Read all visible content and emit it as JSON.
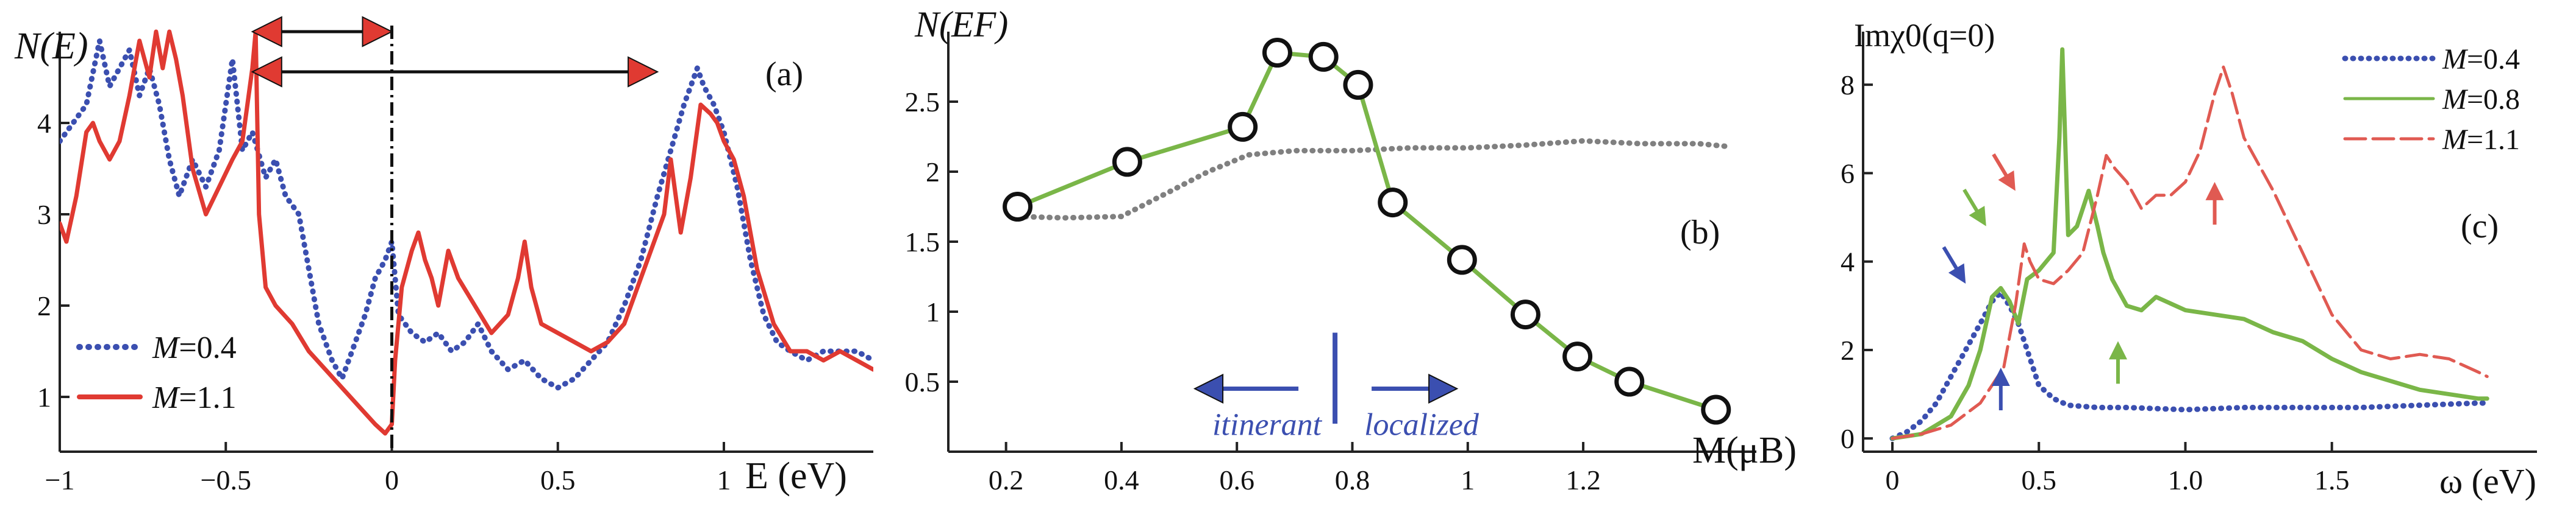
{
  "chart_data": [
    {
      "panel": "(a)",
      "type": "line",
      "ylabel": "N(E)",
      "xlabel": "E (eV)",
      "xlim": [
        -1,
        1.45
      ],
      "ylim": [
        0.4,
        5.0
      ],
      "xticks": [
        {
          "v": -1,
          "t": "−1"
        },
        {
          "v": -0.5,
          "t": "−0.5"
        },
        {
          "v": 0,
          "t": "0"
        },
        {
          "v": 0.5,
          "t": "0.5"
        },
        {
          "v": 1,
          "t": "1"
        }
      ],
      "yticks": [
        {
          "v": 1,
          "t": "1"
        },
        {
          "v": 2,
          "t": "2"
        },
        {
          "v": 3,
          "t": "3"
        },
        {
          "v": 4,
          "t": "4"
        }
      ],
      "legend_position": "bottom-left",
      "series": [
        {
          "name": "M=0.4",
          "italic_part": "M",
          "value_part": "=0.4",
          "color": "#3b4fb0",
          "style": "dotted",
          "x": [
            -1.0,
            -0.96,
            -0.92,
            -0.88,
            -0.85,
            -0.82,
            -0.79,
            -0.76,
            -0.73,
            -0.7,
            -0.67,
            -0.64,
            -0.6,
            -0.56,
            -0.52,
            -0.48,
            -0.45,
            -0.42,
            -0.38,
            -0.35,
            -0.32,
            -0.28,
            -0.25,
            -0.22,
            -0.18,
            -0.15,
            -0.12,
            -0.08,
            -0.05,
            -0.02,
            0.0,
            0.02,
            0.06,
            0.1,
            0.14,
            0.18,
            0.22,
            0.26,
            0.3,
            0.35,
            0.4,
            0.45,
            0.5,
            0.55,
            0.6,
            0.65,
            0.7,
            0.75,
            0.8,
            0.84,
            0.88,
            0.92,
            0.94,
            0.97,
            1.0,
            1.04,
            1.08,
            1.12,
            1.16,
            1.2,
            1.25,
            1.3,
            1.35,
            1.4,
            1.45
          ],
          "y": [
            3.8,
            4.0,
            4.2,
            4.9,
            4.4,
            4.6,
            4.8,
            4.3,
            4.6,
            4.2,
            3.6,
            3.2,
            3.6,
            3.3,
            3.7,
            4.7,
            3.7,
            3.9,
            3.4,
            3.6,
            3.2,
            3.0,
            2.4,
            1.8,
            1.4,
            1.2,
            1.5,
            1.9,
            2.3,
            2.5,
            2.7,
            1.9,
            1.7,
            1.6,
            1.7,
            1.5,
            1.6,
            1.8,
            1.5,
            1.3,
            1.4,
            1.2,
            1.1,
            1.2,
            1.4,
            1.6,
            2.0,
            2.5,
            3.2,
            3.7,
            4.2,
            4.6,
            4.4,
            4.2,
            3.9,
            3.3,
            2.5,
            1.9,
            1.6,
            1.5,
            1.4,
            1.5,
            1.5,
            1.5,
            1.4
          ]
        },
        {
          "name": "M=1.1",
          "italic_part": "M",
          "value_part": "=1.1",
          "color": "#e03a32",
          "style": "solid",
          "x": [
            -1.0,
            -0.98,
            -0.95,
            -0.92,
            -0.9,
            -0.88,
            -0.85,
            -0.82,
            -0.79,
            -0.76,
            -0.73,
            -0.71,
            -0.69,
            -0.67,
            -0.65,
            -0.63,
            -0.6,
            -0.56,
            -0.52,
            -0.48,
            -0.45,
            -0.42,
            -0.41,
            -0.4,
            -0.38,
            -0.35,
            -0.3,
            -0.25,
            -0.2,
            -0.15,
            -0.1,
            -0.05,
            -0.02,
            0.0,
            0.01,
            0.03,
            0.06,
            0.08,
            0.1,
            0.12,
            0.14,
            0.17,
            0.2,
            0.25,
            0.3,
            0.35,
            0.38,
            0.4,
            0.42,
            0.45,
            0.5,
            0.55,
            0.6,
            0.65,
            0.7,
            0.74,
            0.78,
            0.82,
            0.84,
            0.87,
            0.9,
            0.93,
            0.96,
            0.98,
            1.0,
            1.03,
            1.06,
            1.1,
            1.15,
            1.2,
            1.25,
            1.3,
            1.35,
            1.4,
            1.45
          ],
          "y": [
            2.9,
            2.7,
            3.2,
            3.9,
            4.0,
            3.8,
            3.6,
            3.8,
            4.3,
            4.9,
            4.5,
            5.0,
            4.6,
            5.0,
            4.7,
            4.3,
            3.5,
            3.0,
            3.3,
            3.6,
            3.8,
            4.6,
            5.0,
            3.0,
            2.2,
            2.0,
            1.8,
            1.5,
            1.3,
            1.1,
            0.9,
            0.7,
            0.6,
            0.7,
            1.4,
            2.2,
            2.6,
            2.8,
            2.5,
            2.3,
            2.0,
            2.6,
            2.3,
            2.0,
            1.7,
            1.9,
            2.3,
            2.7,
            2.2,
            1.8,
            1.7,
            1.6,
            1.5,
            1.6,
            1.8,
            2.2,
            2.6,
            3.0,
            3.6,
            2.8,
            3.4,
            4.2,
            4.1,
            4.0,
            3.8,
            3.6,
            3.2,
            2.4,
            1.8,
            1.5,
            1.5,
            1.4,
            1.5,
            1.4,
            1.3
          ]
        }
      ],
      "vline_x": 0,
      "arrows": [
        {
          "y": 5.0,
          "x_from": -0.42,
          "x_to": 0.0,
          "double": true
        },
        {
          "y": 4.6,
          "x_from": -0.42,
          "x_to": 0.8,
          "double": true
        }
      ],
      "panel_label": "(a)"
    },
    {
      "panel": "(b)",
      "type": "line",
      "ylabel": "N(EF)",
      "xlabel": "M(μB)",
      "xlim": [
        0.1,
        1.5
      ],
      "ylim": [
        0,
        3.0
      ],
      "xticks": [
        {
          "v": 0.2,
          "t": "0.2"
        },
        {
          "v": 0.4,
          "t": "0.4"
        },
        {
          "v": 0.6,
          "t": "0.6"
        },
        {
          "v": 0.8,
          "t": "0.8"
        },
        {
          "v": 1,
          "t": "1"
        },
        {
          "v": 1.2,
          "t": "1.2"
        }
      ],
      "yticks": [
        {
          "v": 0.5,
          "t": "0.5"
        },
        {
          "v": 1,
          "t": "1"
        },
        {
          "v": 1.5,
          "t": "1.5"
        },
        {
          "v": 2,
          "t": "2"
        },
        {
          "v": 2.5,
          "t": "2.5"
        }
      ],
      "series": [
        {
          "name": "",
          "color": "#7ab648",
          "style": "solid-markers",
          "x": [
            0.22,
            0.41,
            0.61,
            0.67,
            0.75,
            0.81,
            0.87,
            0.99,
            1.1,
            1.19,
            1.28,
            1.43
          ],
          "y": [
            1.75,
            2.07,
            2.32,
            2.85,
            2.82,
            2.62,
            1.78,
            1.37,
            0.98,
            0.68,
            0.5,
            0.3
          ]
        },
        {
          "name": "",
          "color": "#808080",
          "style": "dotted",
          "x": [
            0.22,
            0.3,
            0.4,
            0.48,
            0.55,
            0.62,
            0.7,
            0.8,
            0.9,
            1.0,
            1.1,
            1.2,
            1.3,
            1.4,
            1.45
          ],
          "y": [
            1.68,
            1.67,
            1.68,
            1.85,
            2.0,
            2.12,
            2.15,
            2.15,
            2.17,
            2.17,
            2.19,
            2.22,
            2.2,
            2.2,
            2.18
          ]
        }
      ],
      "annotations": {
        "left": "itinerant",
        "right": "localized",
        "divider_x": 0.77,
        "color": "#3b4fb0"
      },
      "panel_label": "(b)"
    },
    {
      "panel": "(c)",
      "type": "line",
      "ylabel": "Imχ0(q=0)",
      "xlabel": "ω (eV)",
      "xlim": [
        -0.1,
        2.2
      ],
      "ylim": [
        -0.3,
        9.2
      ],
      "xticks": [
        {
          "v": 0,
          "t": "0"
        },
        {
          "v": 0.5,
          "t": "0.5"
        },
        {
          "v": 1,
          "t": "1.0"
        },
        {
          "v": 1.5,
          "t": "1.5"
        }
      ],
      "yticks": [
        {
          "v": 0,
          "t": "0"
        },
        {
          "v": 2,
          "t": "2"
        },
        {
          "v": 4,
          "t": "4"
        },
        {
          "v": 6,
          "t": "6"
        },
        {
          "v": 8,
          "t": "8"
        }
      ],
      "legend_position": "top-right",
      "series": [
        {
          "name": "M=0.4",
          "italic_part": "M",
          "value_part": "=0.4",
          "color": "#3b4fb0",
          "style": "dotted",
          "x": [
            0.0,
            0.05,
            0.1,
            0.15,
            0.2,
            0.25,
            0.3,
            0.34,
            0.37,
            0.4,
            0.43,
            0.46,
            0.5,
            0.55,
            0.6,
            0.7,
            0.8,
            1.0,
            1.2,
            1.4,
            1.6,
            1.8,
            2.0,
            2.03
          ],
          "y": [
            0.0,
            0.15,
            0.4,
            0.8,
            1.4,
            2.0,
            2.6,
            3.1,
            3.3,
            3.0,
            2.6,
            2.0,
            1.2,
            0.9,
            0.75,
            0.7,
            0.7,
            0.65,
            0.7,
            0.7,
            0.7,
            0.75,
            0.8,
            0.8
          ]
        },
        {
          "name": "M=0.8",
          "italic_part": "M",
          "value_part": "=0.8",
          "color": "#7ab648",
          "style": "solid",
          "x": [
            0.0,
            0.1,
            0.2,
            0.26,
            0.3,
            0.34,
            0.37,
            0.4,
            0.43,
            0.46,
            0.5,
            0.55,
            0.57,
            0.58,
            0.6,
            0.63,
            0.67,
            0.7,
            0.72,
            0.75,
            0.8,
            0.85,
            0.9,
            1.0,
            1.1,
            1.2,
            1.3,
            1.4,
            1.5,
            1.6,
            1.7,
            1.8,
            1.9,
            2.0,
            2.03
          ],
          "y": [
            0.0,
            0.1,
            0.5,
            1.2,
            2.0,
            3.2,
            3.4,
            3.1,
            2.6,
            3.6,
            3.8,
            4.2,
            6.8,
            8.8,
            4.6,
            4.8,
            5.6,
            4.8,
            4.2,
            3.6,
            3.0,
            2.9,
            3.2,
            2.9,
            2.8,
            2.7,
            2.4,
            2.2,
            1.8,
            1.5,
            1.3,
            1.1,
            1.0,
            0.9,
            0.9
          ]
        },
        {
          "name": "M=1.1",
          "italic_part": "M",
          "value_part": "=1.1",
          "color": "#e05a52",
          "style": "dashed",
          "x": [
            0.0,
            0.1,
            0.2,
            0.3,
            0.38,
            0.42,
            0.45,
            0.47,
            0.5,
            0.55,
            0.6,
            0.65,
            0.7,
            0.73,
            0.76,
            0.8,
            0.85,
            0.9,
            0.95,
            1.0,
            1.05,
            1.1,
            1.13,
            1.16,
            1.2,
            1.3,
            1.4,
            1.5,
            1.6,
            1.7,
            1.8,
            1.9,
            2.0,
            2.03
          ],
          "y": [
            0.0,
            0.1,
            0.3,
            0.8,
            1.6,
            3.0,
            4.4,
            4.0,
            3.6,
            3.5,
            3.8,
            4.2,
            5.5,
            6.4,
            6.1,
            5.8,
            5.2,
            5.5,
            5.5,
            5.8,
            6.5,
            7.8,
            8.4,
            7.8,
            6.8,
            5.6,
            4.2,
            2.8,
            2.0,
            1.8,
            1.9,
            1.8,
            1.5,
            1.4
          ]
        }
      ],
      "markers": [
        {
          "x": 0.25,
          "y": 3.5,
          "dir": "down-right",
          "color": "#3b4fb0"
        },
        {
          "x": 0.37,
          "y": 1.6,
          "dir": "up",
          "color": "#3b4fb0"
        },
        {
          "x": 0.32,
          "y": 4.8,
          "dir": "down-right",
          "color": "#7ab648"
        },
        {
          "x": 0.77,
          "y": 2.2,
          "dir": "up",
          "color": "#7ab648"
        },
        {
          "x": 0.42,
          "y": 5.6,
          "dir": "down-right",
          "color": "#e05a52"
        },
        {
          "x": 1.1,
          "y": 5.8,
          "dir": "up",
          "color": "#e05a52"
        }
      ],
      "panel_label": "(c)"
    }
  ]
}
